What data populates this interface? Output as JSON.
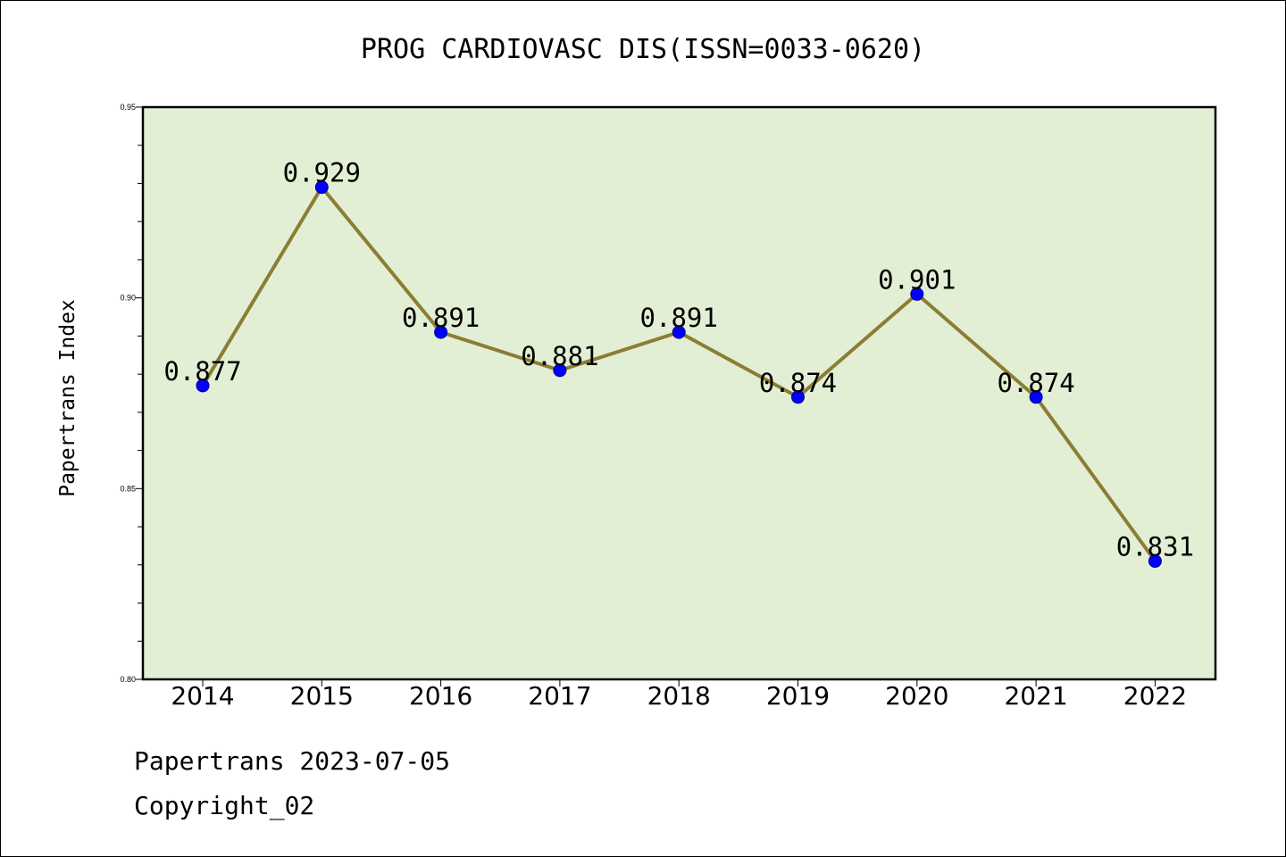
{
  "title": "PROG CARDIOVASC DIS(ISSN=0033-0620)",
  "footer": {
    "line1": "Papertrans 2023-07-05",
    "line2": "Copyright_02"
  },
  "colors": {
    "plot_background": "#e2efd5",
    "line": "#8b7d33",
    "marker": "#0000ff"
  },
  "chart_data": {
    "type": "line",
    "title": "PROG CARDIOVASC DIS(ISSN=0033-0620)",
    "xlabel": "",
    "ylabel": "Papertrans Index",
    "categories": [
      "2014",
      "2015",
      "2016",
      "2017",
      "2018",
      "2019",
      "2020",
      "2021",
      "2022"
    ],
    "series": [
      {
        "values": [
          0.877,
          0.929,
          0.891,
          0.881,
          0.891,
          0.874,
          0.901,
          0.874,
          0.831
        ],
        "labels": [
          "0.877",
          "0.929",
          "0.891",
          "0.881",
          "0.891",
          "0.874",
          "0.901",
          "0.874",
          "0.831"
        ]
      }
    ],
    "ylim": [
      0.8,
      0.95
    ],
    "yticks": [
      "0.80",
      "0.85",
      "0.90",
      "0.95"
    ],
    "grid": false,
    "legend": "none"
  }
}
